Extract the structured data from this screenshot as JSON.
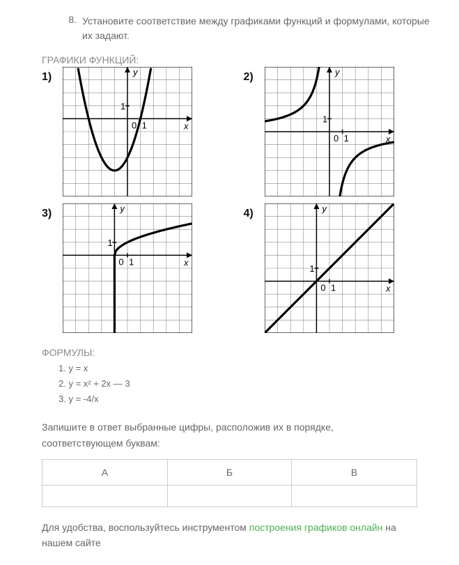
{
  "problem": {
    "number": "8.",
    "text": "Установите соответствие между графиками функций и формулами, которые их задают."
  },
  "sections": {
    "graphs_label": "ГРАФИКИ ФУНКЦИЙ:",
    "formulas_label": "ФОРМУЛЫ:"
  },
  "graphs": [
    {
      "label": "1)",
      "type": "parabola"
    },
    {
      "label": "2)",
      "type": "hyperbola"
    },
    {
      "label": "3)",
      "type": "sqrt"
    },
    {
      "label": "4)",
      "type": "line"
    }
  ],
  "graph_style": {
    "size": 186,
    "cells": 10,
    "grid_color": "#888",
    "axis_color": "#000",
    "curve_color": "#000",
    "curve_width": 3.2,
    "grid_width": 0.6,
    "axis_width": 1.5,
    "background": "#fff",
    "label_x": "x",
    "label_y": "y",
    "tick_label_0": "0",
    "tick_label_1": "1",
    "label_font_size": 13,
    "label_font_style": "italic"
  },
  "formulas": [
    "1. y = x",
    "2. y = x² + 2x — 3",
    "3. y = -4/x"
  ],
  "instructions": "Запишите в ответ выбранные цифры, расположив их в порядке, соответствующем буквам:",
  "answer_table": {
    "headers": [
      "А",
      "Б",
      "В"
    ]
  },
  "footer": {
    "pre": "Для удобства, воспользуйтесь инструментом ",
    "link": "построения графиков онлайн",
    "post": " на нашем сайте"
  }
}
